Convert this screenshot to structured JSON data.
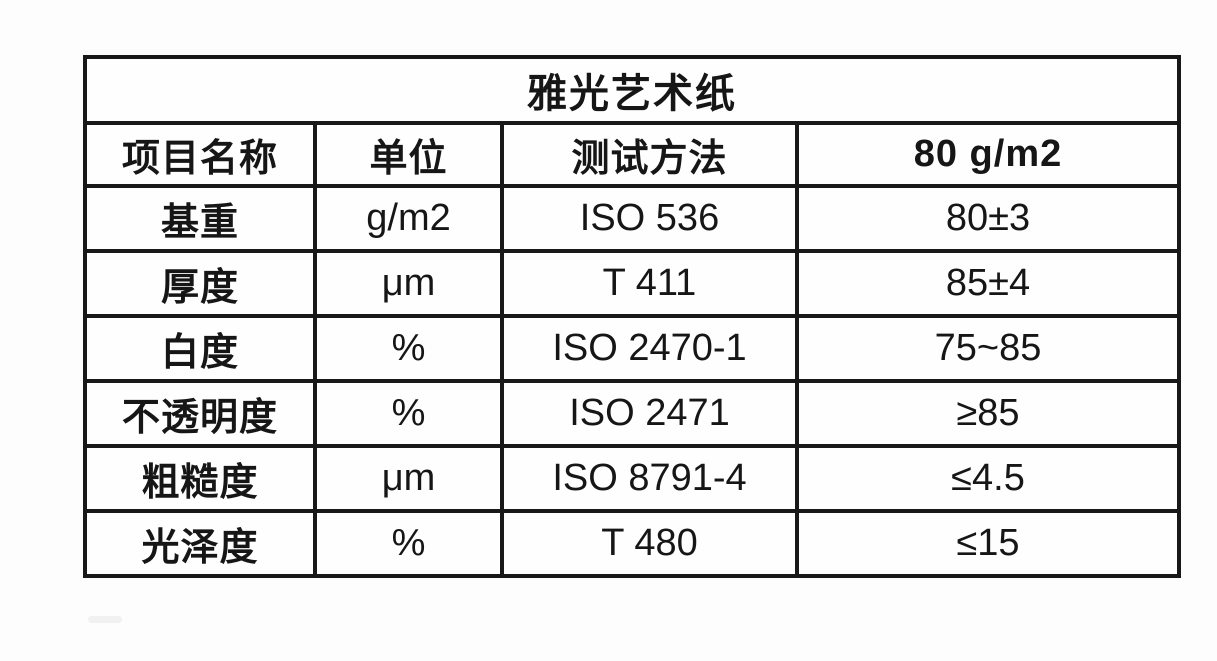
{
  "page": {
    "background": "#fdfdfd",
    "border_color": "#181818",
    "text_color": "#161616"
  },
  "table": {
    "title": "雅光艺术纸",
    "columns": [
      "项目名称",
      "单位",
      "测试方法",
      "80 g/m2"
    ],
    "rows": [
      {
        "name": "基重",
        "unit": "g/m2",
        "method": "ISO 536",
        "value": "80±3"
      },
      {
        "name": "厚度",
        "unit": "μm",
        "method": "T 411",
        "value": "85±4"
      },
      {
        "name": "白度",
        "unit": "%",
        "method": "ISO 2470-1",
        "value": "75~85"
      },
      {
        "name": "不透明度",
        "unit": "%",
        "method": "ISO 2471",
        "value": "≥85"
      },
      {
        "name": "粗糙度",
        "unit": "μm",
        "method": "ISO 8791-4",
        "value": "≤4.5"
      },
      {
        "name": "光泽度",
        "unit": "%",
        "method": "T 480",
        "value": "≤15"
      }
    ]
  }
}
